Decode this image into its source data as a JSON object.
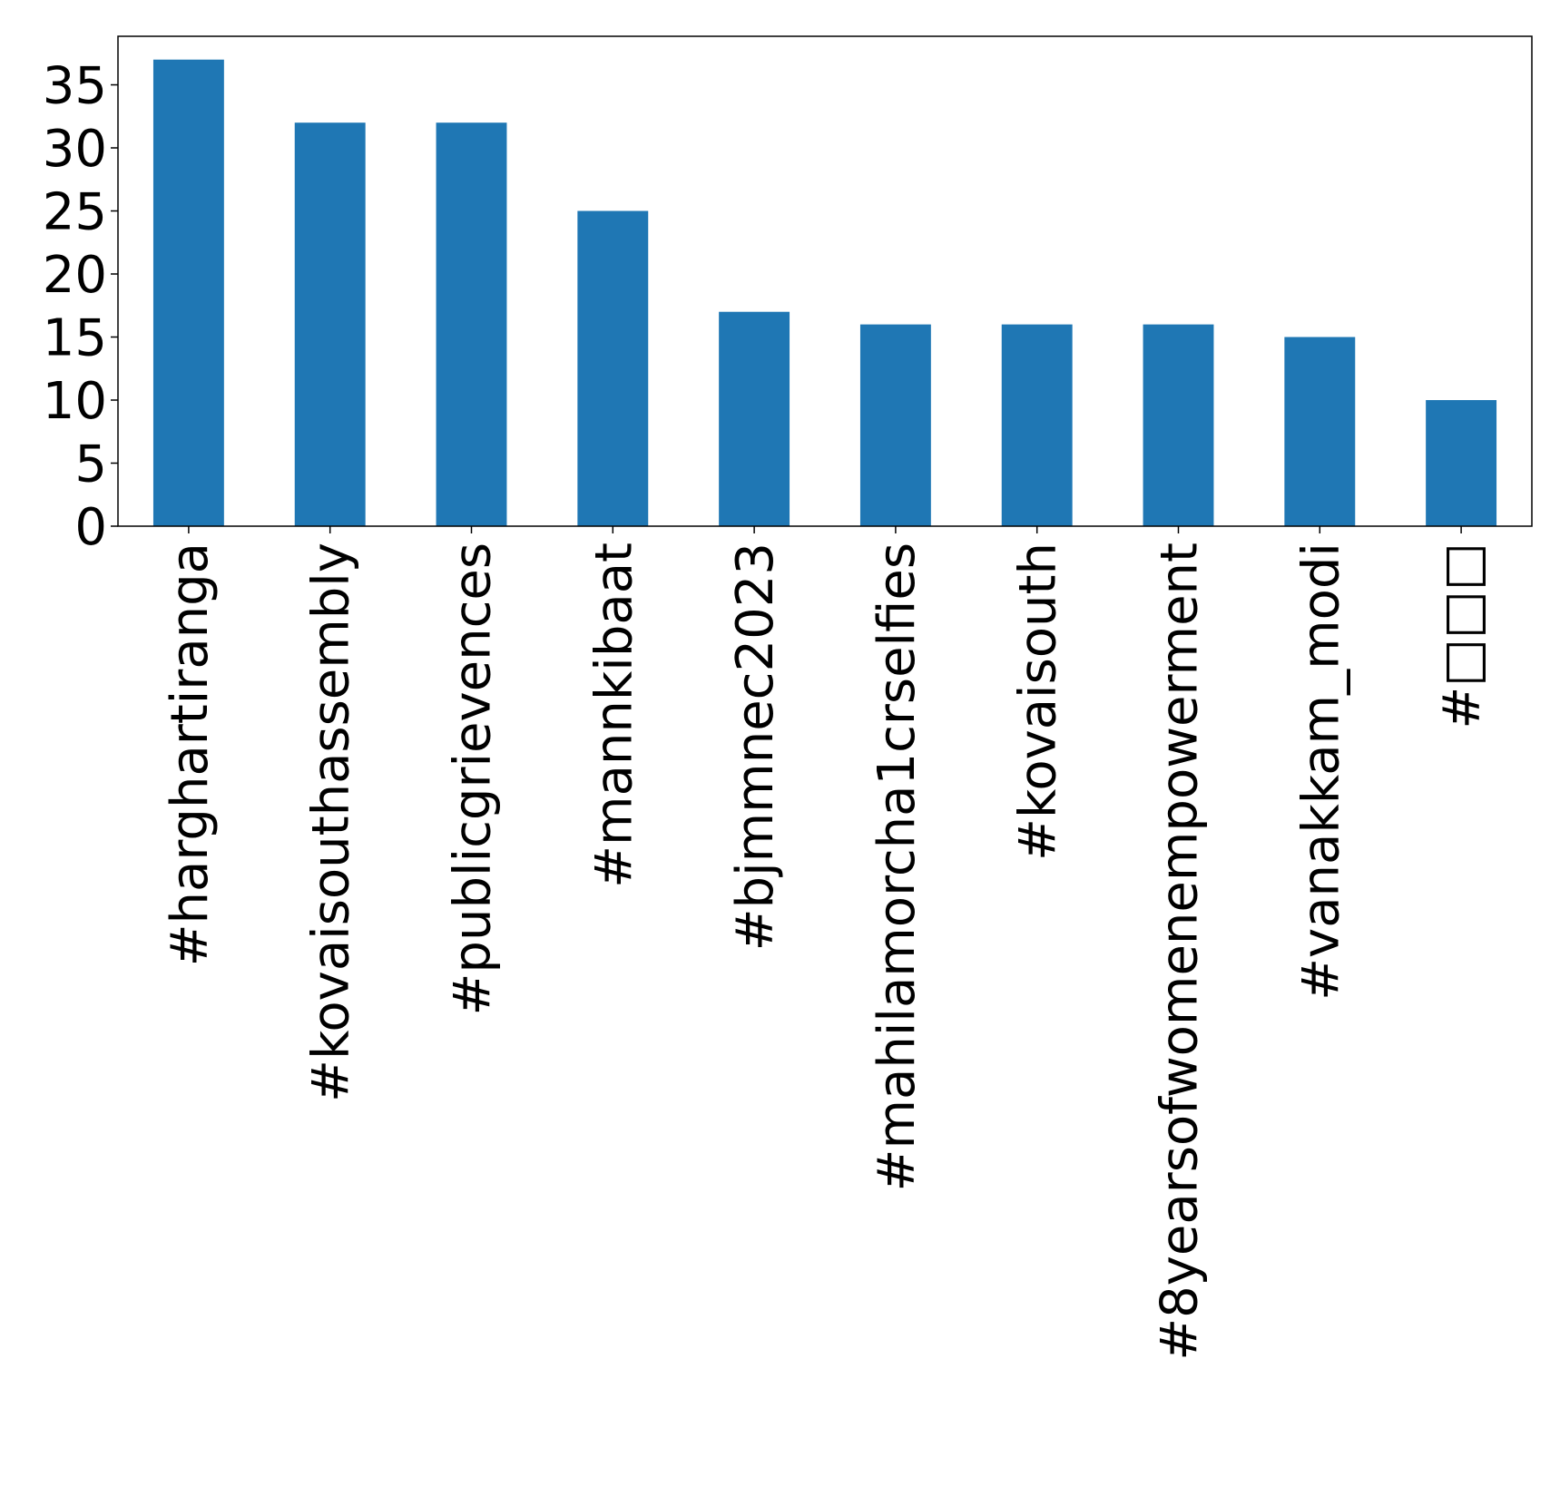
{
  "chart_data": {
    "type": "bar",
    "categories": [
      "#harghartiranga",
      "#kovaisouthassembly",
      "#publicgrievences",
      "#mannkibaat",
      "#bjmmnec2023",
      "#mahilamorcha1crselfies",
      "#kovaisouth",
      "#8yearsofwomenempowerment",
      "#vanakkam_modi",
      "#□□□"
    ],
    "values": [
      37,
      32,
      32,
      25,
      17,
      16,
      16,
      16,
      15,
      10
    ],
    "ylim": [
      0,
      38.85
    ],
    "yticks": [
      0,
      5,
      10,
      15,
      20,
      25,
      30,
      35
    ],
    "grid": false,
    "legend": "none",
    "colors": {
      "bar": "#1f77b4",
      "axis": "#000000",
      "background": "#ffffff"
    }
  }
}
